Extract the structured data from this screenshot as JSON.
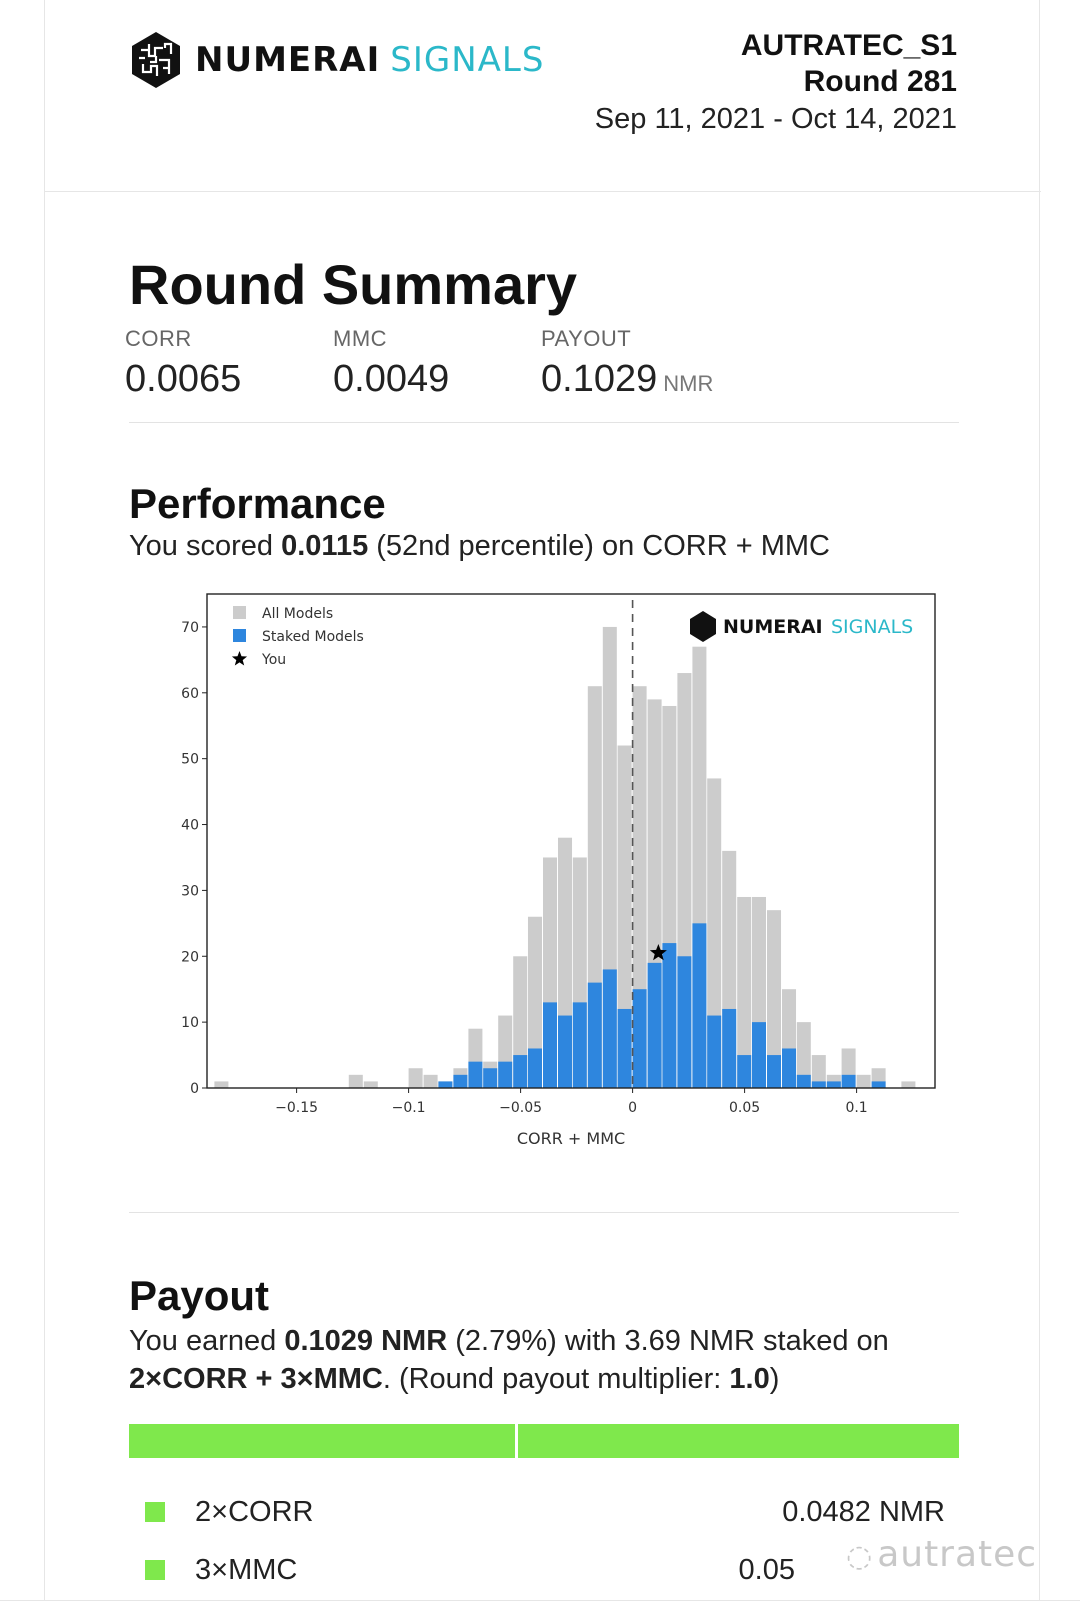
{
  "header": {
    "logo_word1": "NUMERAI",
    "logo_word2": "SIGNALS",
    "model_name": "AUTRATEC_S1",
    "round": "Round 281",
    "dates": "Sep 11, 2021 - Oct 14, 2021"
  },
  "summary": {
    "title": "Round Summary",
    "stats": [
      {
        "label": "CORR",
        "value": "0.0065",
        "unit": ""
      },
      {
        "label": "MMC",
        "value": "0.0049",
        "unit": ""
      },
      {
        "label": "PAYOUT",
        "value": "0.1029",
        "unit": "NMR"
      }
    ]
  },
  "performance": {
    "title": "Performance",
    "text_pre": "You scored ",
    "score": "0.0115",
    "text_post": " (52nd percentile) on CORR + MMC"
  },
  "chart_data": {
    "type": "bar",
    "xlabel": "CORR + MMC",
    "ylabel": "",
    "xlim": [
      -0.19,
      0.135
    ],
    "ylim": [
      0,
      75
    ],
    "bin_width": 0.0067,
    "xticks": [
      -0.15,
      -0.1,
      -0.05,
      0,
      0.05,
      0.1
    ],
    "xtick_labels": [
      "−0.15",
      "−0.1",
      "−0.05",
      "0",
      "0.05",
      "0.1"
    ],
    "yticks": [
      0,
      10,
      20,
      30,
      40,
      50,
      60,
      70
    ],
    "reference_line_x": 0,
    "legend_position": "top-left",
    "legend": [
      "All Models",
      "Staked Models",
      "You"
    ],
    "watermark": {
      "word1": "NUMERAI",
      "word2": "SIGNALS"
    },
    "you": {
      "x": 0.0115,
      "y": 20.5
    },
    "colors": {
      "all": "#cccccc",
      "staked": "#2e86de",
      "you": "#000000"
    },
    "bins": [
      {
        "x": -0.1867,
        "all": 1,
        "staked": 0
      },
      {
        "x": -0.1267,
        "all": 2,
        "staked": 0
      },
      {
        "x": -0.12,
        "all": 1,
        "staked": 0
      },
      {
        "x": -0.1,
        "all": 3,
        "staked": 0
      },
      {
        "x": -0.0933,
        "all": 2,
        "staked": 0
      },
      {
        "x": -0.0867,
        "all": 1,
        "staked": 1
      },
      {
        "x": -0.08,
        "all": 3,
        "staked": 2
      },
      {
        "x": -0.0733,
        "all": 9,
        "staked": 4
      },
      {
        "x": -0.0667,
        "all": 4,
        "staked": 3
      },
      {
        "x": -0.06,
        "all": 11,
        "staked": 4
      },
      {
        "x": -0.0533,
        "all": 20,
        "staked": 5
      },
      {
        "x": -0.0467,
        "all": 26,
        "staked": 6
      },
      {
        "x": -0.04,
        "all": 35,
        "staked": 13
      },
      {
        "x": -0.0333,
        "all": 38,
        "staked": 11
      },
      {
        "x": -0.0267,
        "all": 35,
        "staked": 13
      },
      {
        "x": -0.02,
        "all": 61,
        "staked": 16
      },
      {
        "x": -0.0133,
        "all": 70,
        "staked": 18
      },
      {
        "x": -0.0067,
        "all": 52,
        "staked": 12
      },
      {
        "x": 0.0,
        "all": 61,
        "staked": 15
      },
      {
        "x": 0.0067,
        "all": 59,
        "staked": 19
      },
      {
        "x": 0.0133,
        "all": 58,
        "staked": 22
      },
      {
        "x": 0.02,
        "all": 63,
        "staked": 20
      },
      {
        "x": 0.0267,
        "all": 67,
        "staked": 25
      },
      {
        "x": 0.0333,
        "all": 47,
        "staked": 11
      },
      {
        "x": 0.04,
        "all": 36,
        "staked": 12
      },
      {
        "x": 0.0467,
        "all": 29,
        "staked": 5
      },
      {
        "x": 0.0533,
        "all": 29,
        "staked": 10
      },
      {
        "x": 0.06,
        "all": 27,
        "staked": 5
      },
      {
        "x": 0.0667,
        "all": 15,
        "staked": 6
      },
      {
        "x": 0.0733,
        "all": 10,
        "staked": 2
      },
      {
        "x": 0.08,
        "all": 5,
        "staked": 1
      },
      {
        "x": 0.0867,
        "all": 2,
        "staked": 1
      },
      {
        "x": 0.0933,
        "all": 6,
        "staked": 2
      },
      {
        "x": 0.1,
        "all": 2,
        "staked": 0
      },
      {
        "x": 0.1067,
        "all": 3,
        "staked": 1
      },
      {
        "x": 0.12,
        "all": 1,
        "staked": 0
      }
    ]
  },
  "payout": {
    "title": "Payout",
    "line1_pre": "You earned ",
    "amount": "0.1029 NMR",
    "line1_mid": " (2.79%) with 3.69 NMR staked on",
    "formula": "2×CORR + 3×MMC",
    "line2_mid": ". (Round payout multiplier: ",
    "multiplier": "1.0",
    "line2_post": ")",
    "bar_fraction_corr": 0.465,
    "items": [
      {
        "name": "2×CORR",
        "amount": "0.0482 NMR"
      },
      {
        "name": "3×MMC",
        "amount": "0.05"
      }
    ]
  },
  "watermark": {
    "text": "autratec"
  }
}
